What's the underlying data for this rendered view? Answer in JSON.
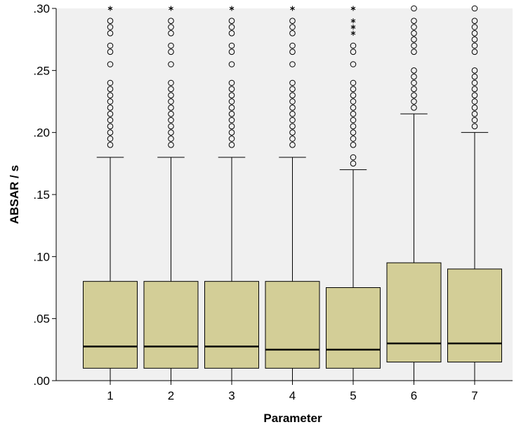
{
  "chart_data": {
    "type": "boxplot",
    "xlabel": "Parameter",
    "ylabel": "ABSAR / s",
    "ylim": [
      0,
      0.3
    ],
    "yticks": [
      0,
      0.05,
      0.1,
      0.15,
      0.2,
      0.25,
      0.3
    ],
    "ytick_labels": [
      ".00",
      ".05",
      ".10",
      ".15",
      ".20",
      ".25",
      ".30"
    ],
    "categories": [
      "1",
      "2",
      "3",
      "4",
      "5",
      "6",
      "7"
    ],
    "grid": false,
    "box_color": "#d3ce97",
    "plot_background": "#f0f0f0",
    "boxes": [
      {
        "label": "1",
        "whisker_low": 0.0,
        "q1": 0.01,
        "median": 0.0275,
        "q3": 0.08,
        "whisker_high": 0.18,
        "outliers": [
          0.19,
          0.195,
          0.2,
          0.205,
          0.21,
          0.215,
          0.22,
          0.225,
          0.23,
          0.235,
          0.24,
          0.255,
          0.265,
          0.27,
          0.28,
          0.285,
          0.29
        ],
        "extremes": [
          0.3
        ]
      },
      {
        "label": "2",
        "whisker_low": 0.0,
        "q1": 0.01,
        "median": 0.0275,
        "q3": 0.08,
        "whisker_high": 0.18,
        "outliers": [
          0.19,
          0.195,
          0.2,
          0.205,
          0.21,
          0.215,
          0.22,
          0.225,
          0.23,
          0.235,
          0.24,
          0.255,
          0.265,
          0.27,
          0.28,
          0.285,
          0.29
        ],
        "extremes": [
          0.3
        ]
      },
      {
        "label": "3",
        "whisker_low": 0.0,
        "q1": 0.01,
        "median": 0.0275,
        "q3": 0.08,
        "whisker_high": 0.18,
        "outliers": [
          0.19,
          0.195,
          0.2,
          0.205,
          0.21,
          0.215,
          0.22,
          0.225,
          0.23,
          0.235,
          0.24,
          0.255,
          0.265,
          0.27,
          0.28,
          0.285,
          0.29
        ],
        "extremes": [
          0.3
        ]
      },
      {
        "label": "4",
        "whisker_low": 0.0,
        "q1": 0.01,
        "median": 0.025,
        "q3": 0.08,
        "whisker_high": 0.18,
        "outliers": [
          0.19,
          0.195,
          0.2,
          0.205,
          0.21,
          0.215,
          0.22,
          0.225,
          0.23,
          0.235,
          0.24,
          0.255,
          0.265,
          0.27,
          0.28,
          0.285,
          0.29
        ],
        "extremes": [
          0.3
        ]
      },
      {
        "label": "5",
        "whisker_low": 0.0,
        "q1": 0.01,
        "median": 0.025,
        "q3": 0.075,
        "whisker_high": 0.17,
        "outliers": [
          0.175,
          0.18,
          0.19,
          0.195,
          0.2,
          0.205,
          0.21,
          0.215,
          0.22,
          0.225,
          0.23,
          0.235,
          0.24,
          0.255,
          0.265,
          0.27
        ],
        "extremes": [
          0.28,
          0.285,
          0.29,
          0.3
        ]
      },
      {
        "label": "6",
        "whisker_low": 0.0,
        "q1": 0.015,
        "median": 0.03,
        "q3": 0.095,
        "whisker_high": 0.215,
        "outliers": [
          0.22,
          0.225,
          0.23,
          0.235,
          0.24,
          0.245,
          0.25,
          0.265,
          0.27,
          0.275,
          0.28,
          0.285,
          0.29,
          0.3
        ],
        "extremes": []
      },
      {
        "label": "7",
        "whisker_low": 0.0,
        "q1": 0.015,
        "median": 0.03,
        "q3": 0.09,
        "whisker_high": 0.2,
        "outliers": [
          0.205,
          0.21,
          0.215,
          0.22,
          0.225,
          0.23,
          0.235,
          0.24,
          0.245,
          0.25,
          0.265,
          0.27,
          0.275,
          0.28,
          0.285,
          0.29,
          0.3
        ],
        "extremes": []
      }
    ]
  }
}
